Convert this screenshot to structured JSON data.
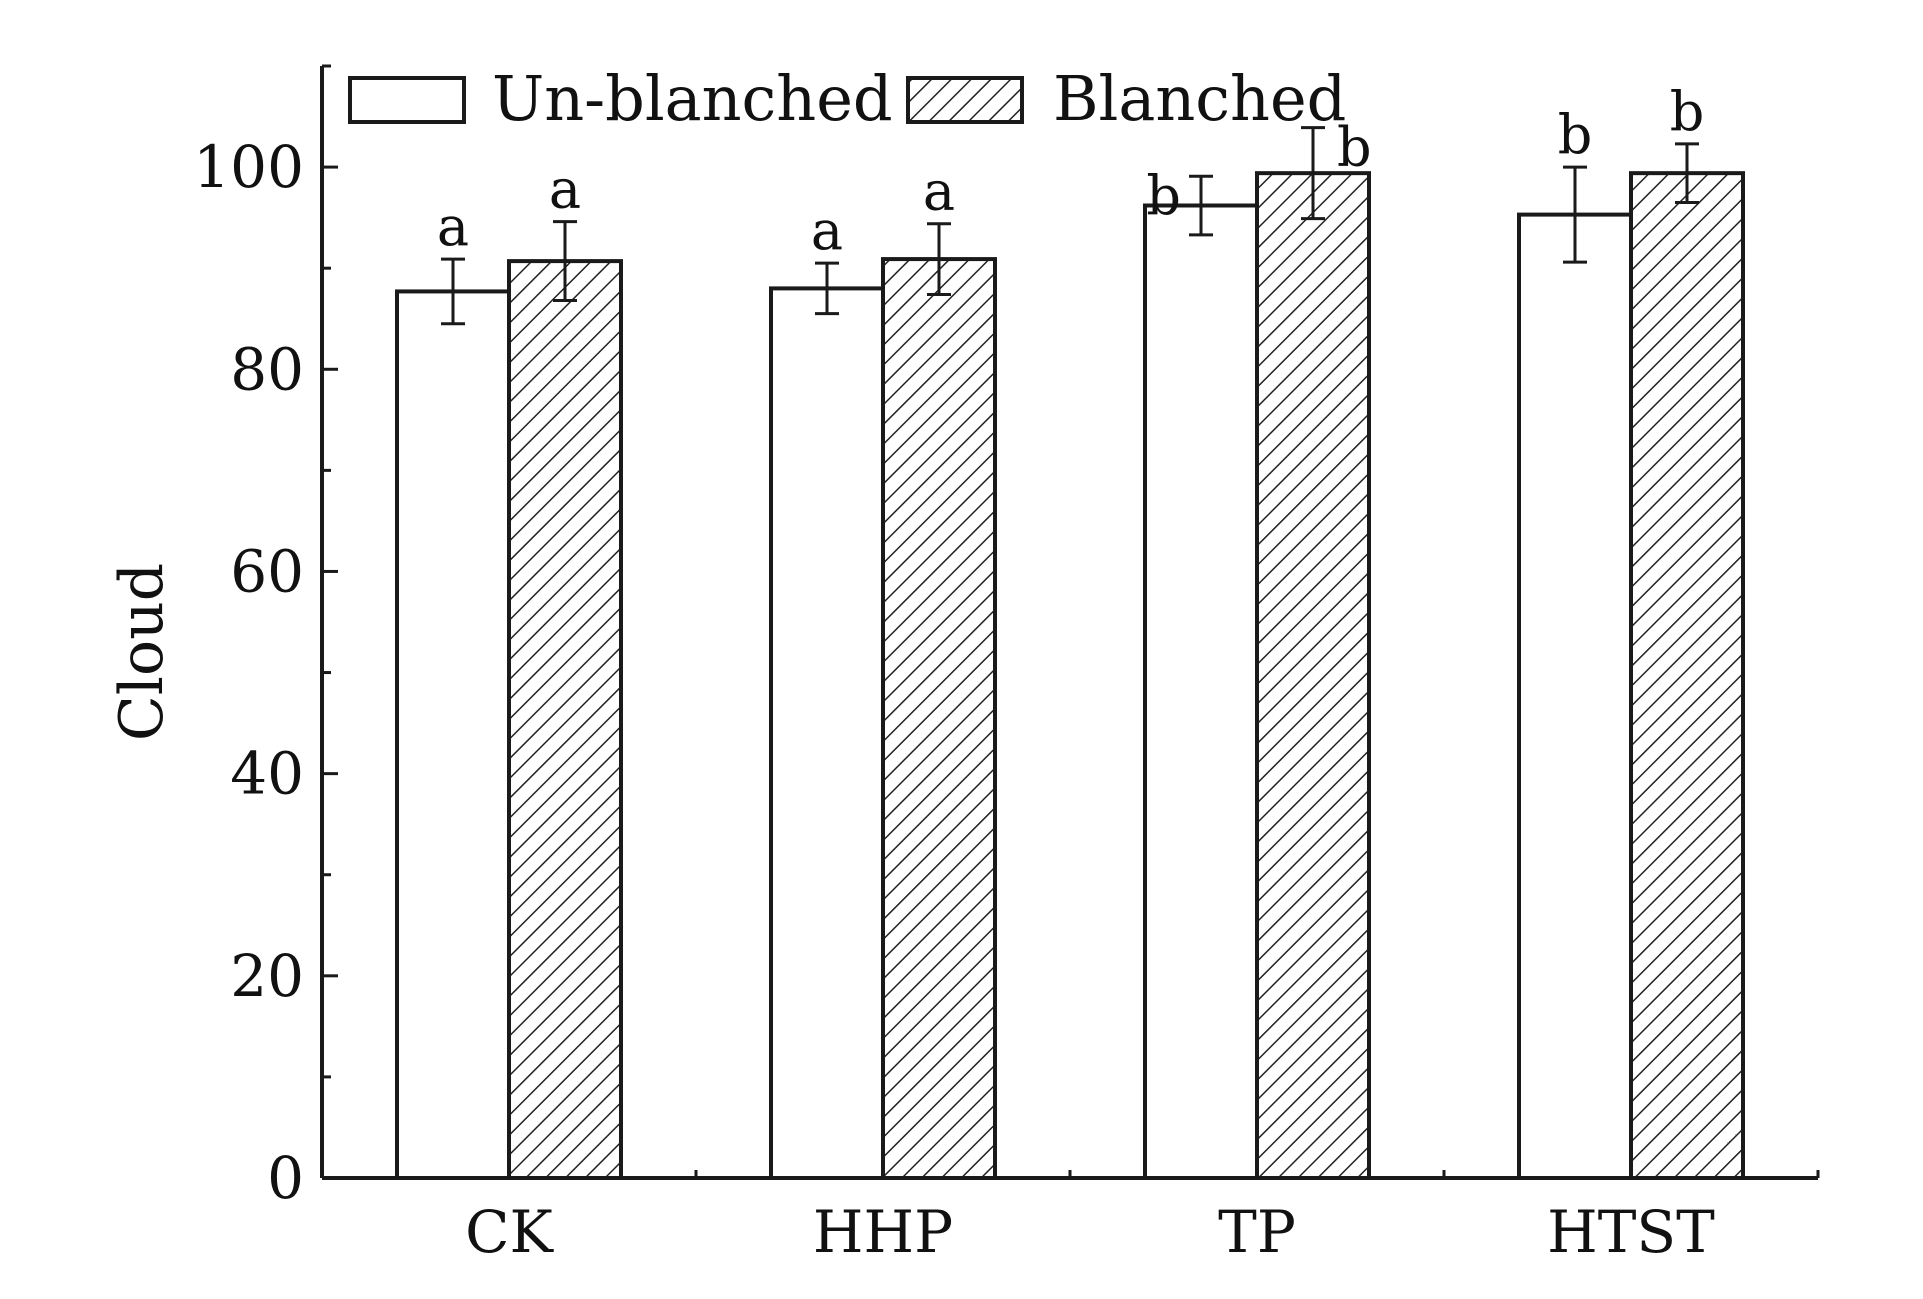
{
  "chart_data": {
    "type": "bar",
    "title": "",
    "xlabel": "",
    "ylabel": "Cloud",
    "ylim": [
      0,
      110
    ],
    "yticks": [
      0,
      20,
      40,
      60,
      80,
      100
    ],
    "categories": [
      "CK",
      "HHP",
      "TP",
      "HTST"
    ],
    "legend_position": "top",
    "grid": false,
    "series": [
      {
        "name": "Un-blanched",
        "pattern": "none",
        "fill": "#ffffff",
        "values": [
          87.7,
          88.0,
          96.2,
          95.3
        ],
        "errors": [
          3.2,
          2.5,
          2.9,
          4.7
        ],
        "labels": [
          "a",
          "a",
          "b",
          "b"
        ]
      },
      {
        "name": "Blanched",
        "pattern": "hatched",
        "fill": "#ffffff",
        "values": [
          90.7,
          90.9,
          99.4,
          99.4
        ],
        "errors": [
          3.9,
          3.5,
          4.5,
          2.9
        ],
        "labels": [
          "a",
          "a",
          "b",
          "b"
        ]
      }
    ]
  },
  "colors": {
    "stroke": "#1a1a1a",
    "hatch": "#222222",
    "background": "#ffffff"
  }
}
